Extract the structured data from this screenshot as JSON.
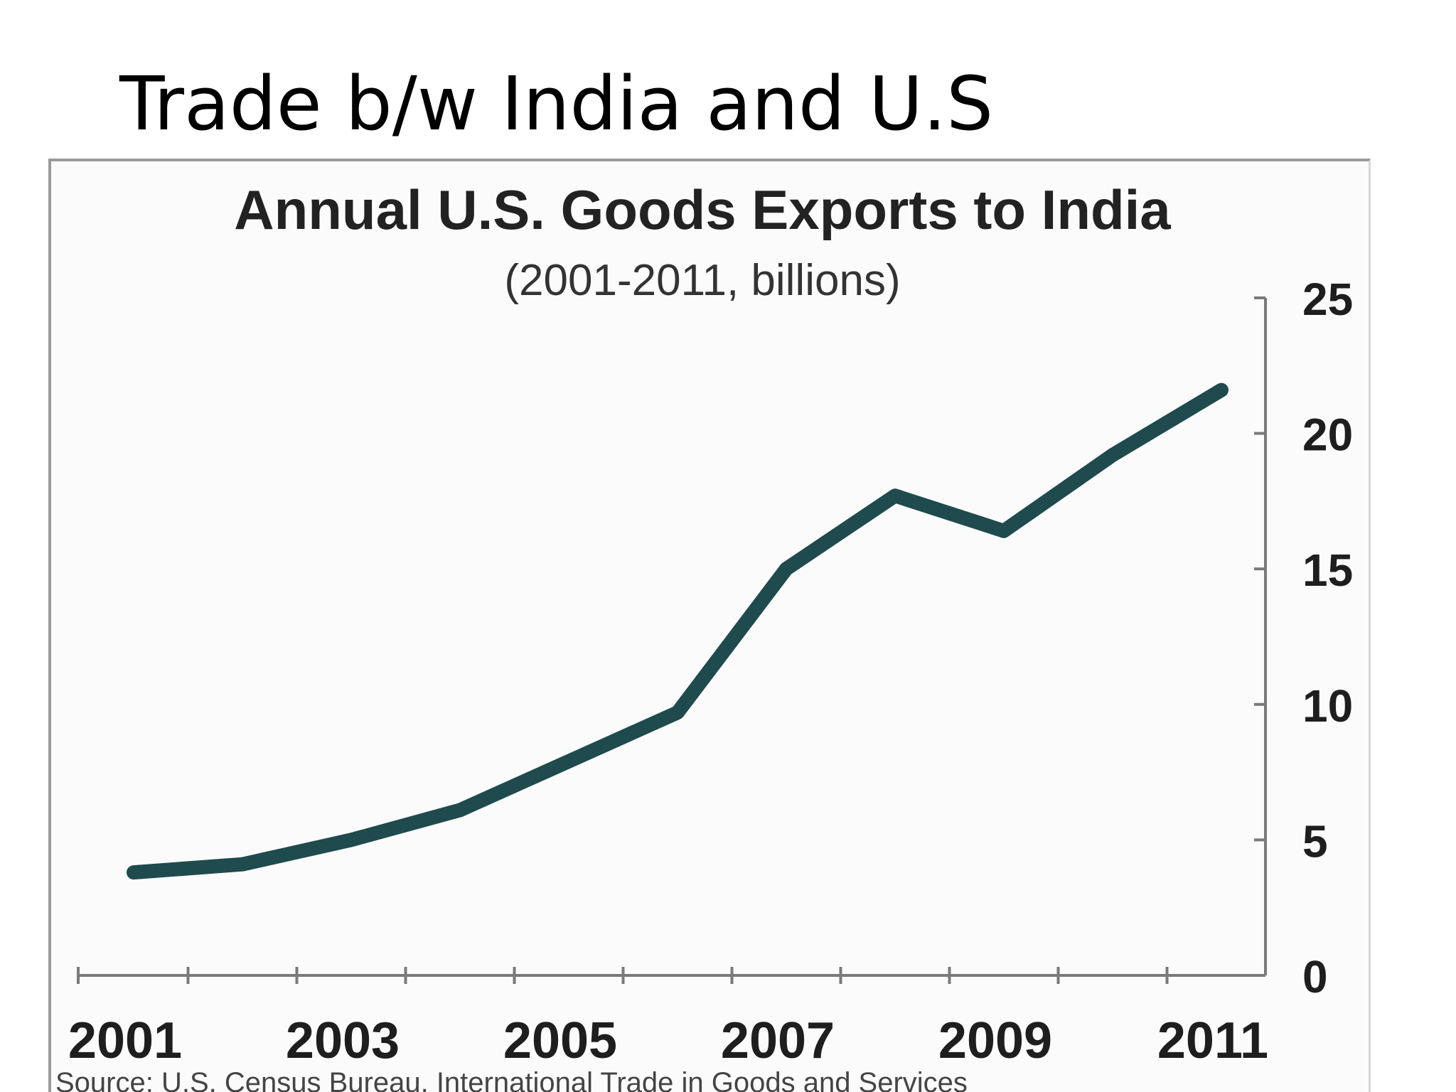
{
  "slide": {
    "title": "Trade b/w India and U.S"
  },
  "chart_data": {
    "type": "line",
    "title": "Annual U.S. Goods Exports to India",
    "subtitle": "(2001-2011, billions)",
    "source": "Source: U.S. Census Bureau, International Trade in Goods and Services",
    "x": [
      2001,
      2002,
      2003,
      2004,
      2005,
      2006,
      2007,
      2008,
      2009,
      2010,
      2011
    ],
    "x_tick_labels": [
      "2001",
      "2003",
      "2005",
      "2007",
      "2009",
      "2011"
    ],
    "y_tick_labels": [
      "0",
      "5",
      "10",
      "15",
      "20",
      "25"
    ],
    "ylim": [
      0,
      25
    ],
    "y_axis_side": "right",
    "grid": false,
    "series": [
      {
        "values": [
          3.8,
          4.1,
          5.0,
          6.1,
          7.9,
          9.7,
          15.0,
          17.7,
          16.4,
          19.2,
          21.6
        ]
      }
    ],
    "line_color": "#1f4a4e"
  }
}
